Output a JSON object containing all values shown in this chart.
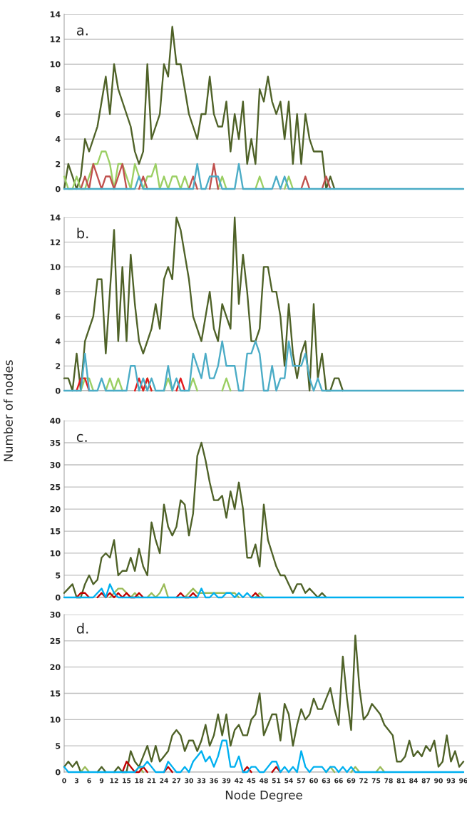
{
  "chart_data": [
    {
      "type": "line",
      "ylim": [
        0,
        14
      ],
      "yticks": [
        0,
        2,
        4,
        6,
        8,
        10,
        12,
        14
      ],
      "grid": "y",
      "tick_labels": "y",
      "annotations": [
        "a."
      ],
      "categories": [
        "0",
        null,
        null,
        "3",
        null,
        null,
        "6",
        null,
        null,
        "9",
        null,
        null,
        "12",
        null,
        null,
        "15",
        null,
        null,
        "18",
        null,
        null,
        "21",
        null,
        null,
        "24",
        null,
        null,
        "27",
        null,
        null,
        "30",
        null,
        null,
        "33",
        null,
        null,
        "36",
        null,
        null,
        "39",
        null,
        null,
        "42",
        null,
        null,
        "45",
        null,
        null,
        "48",
        null,
        null,
        "51",
        null,
        null,
        "54",
        null,
        null,
        "57",
        null,
        null,
        "60",
        null,
        null,
        "63",
        null,
        null,
        "66",
        null,
        null,
        "69",
        null,
        null,
        "72",
        null,
        null,
        "75",
        null,
        null,
        "78",
        null,
        null,
        "81",
        null,
        null,
        "84",
        null,
        null,
        "87",
        null,
        null,
        "90",
        null,
        null,
        "93",
        null,
        null,
        "96"
      ],
      "series": [
        {
          "color": "#4f6228",
          "values": [
            0,
            2,
            1,
            0,
            1,
            4,
            3,
            4,
            5,
            7,
            9,
            6,
            10,
            8,
            7,
            6,
            5,
            3,
            2,
            3,
            10,
            4,
            5,
            6,
            10,
            9,
            13,
            10,
            10,
            8,
            6,
            5,
            4,
            6,
            6,
            9,
            6,
            5,
            5,
            7,
            3,
            6,
            4,
            7,
            2,
            4,
            2,
            8,
            7,
            9,
            7,
            6,
            7,
            4,
            7,
            2,
            6,
            2,
            6,
            4,
            3,
            3,
            3,
            0,
            1,
            0,
            null,
            null,
            null,
            null,
            null,
            null,
            null,
            null,
            null,
            null,
            null,
            null,
            null,
            null,
            null,
            null,
            null,
            null,
            null,
            null,
            null,
            null,
            null,
            null,
            null,
            null,
            null,
            null,
            null,
            null,
            null
          ]
        },
        {
          "color": "#9bcf63",
          "values": [
            1,
            0,
            0,
            1,
            0,
            0,
            1,
            2,
            2,
            3,
            3,
            2,
            0,
            2,
            2,
            1,
            0,
            2,
            1,
            0,
            1,
            1,
            2,
            0,
            1,
            0,
            1,
            1,
            0,
            1,
            0,
            null,
            null,
            null,
            null,
            null,
            null,
            0,
            1,
            0,
            null,
            null,
            null,
            null,
            null,
            null,
            0,
            1,
            0,
            null,
            null,
            null,
            null,
            0,
            1,
            0,
            null,
            null,
            null,
            null,
            null,
            null,
            null,
            null,
            null,
            null,
            null,
            null,
            null,
            null,
            null,
            null,
            null,
            null,
            null,
            null,
            null,
            null,
            null,
            null,
            null,
            null,
            null,
            null,
            null,
            null,
            null,
            null,
            null,
            null,
            null,
            null,
            null,
            null,
            null,
            null,
            null
          ]
        },
        {
          "color": "#c0504d",
          "values": [
            null,
            null,
            null,
            null,
            0,
            1,
            0,
            2,
            1,
            0,
            1,
            1,
            0,
            1,
            2,
            0,
            null,
            null,
            0,
            1,
            0,
            null,
            null,
            null,
            null,
            null,
            null,
            null,
            null,
            null,
            0,
            1,
            0,
            null,
            null,
            0,
            2,
            0,
            null,
            null,
            null,
            null,
            null,
            null,
            null,
            null,
            null,
            null,
            null,
            null,
            null,
            null,
            null,
            null,
            null,
            null,
            null,
            0,
            1,
            0,
            null,
            null,
            0,
            1,
            0,
            null,
            null,
            null,
            null,
            null,
            null,
            null,
            null,
            null,
            null,
            null,
            null,
            null,
            null,
            null,
            null,
            null,
            null,
            null,
            null,
            null,
            null,
            null,
            null,
            null,
            null,
            null,
            null,
            null,
            null,
            null,
            null
          ]
        },
        {
          "color": "#4bacc6",
          "values": [
            0,
            0,
            0,
            0,
            0,
            0,
            0,
            0,
            0,
            0,
            0,
            0,
            0,
            0,
            0,
            0,
            0,
            0,
            1,
            0,
            0,
            0,
            0,
            0,
            0,
            0,
            0,
            0,
            0,
            0,
            0,
            0,
            2,
            0,
            0,
            1,
            1,
            1,
            0,
            0,
            0,
            0,
            2,
            0,
            0,
            0,
            0,
            0,
            0,
            0,
            0,
            1,
            0,
            1,
            0,
            0,
            0,
            0,
            0,
            0,
            0,
            0,
            0,
            0,
            0,
            0,
            0,
            0,
            0,
            0,
            0,
            0,
            0,
            0,
            0,
            0,
            0,
            0,
            0,
            0,
            0,
            0,
            0,
            0,
            0,
            0,
            0,
            0,
            0,
            0,
            0,
            0,
            0,
            0,
            0,
            0,
            0
          ]
        }
      ]
    },
    {
      "type": "line",
      "ylim": [
        0,
        14
      ],
      "yticks": [
        0,
        2,
        4,
        6,
        8,
        10,
        12,
        14
      ],
      "grid": "y",
      "tick_labels": "y",
      "annotations": [
        "b."
      ],
      "ylabel": "Number of nodes",
      "categories": [
        "0",
        null,
        null,
        "3",
        null,
        null,
        "6",
        null,
        null,
        "9",
        null,
        null,
        "12",
        null,
        null,
        "15",
        null,
        null,
        "18",
        null,
        null,
        "21",
        null,
        null,
        "24",
        null,
        null,
        "27",
        null,
        null,
        "30",
        null,
        null,
        "33",
        null,
        null,
        "36",
        null,
        null,
        "39",
        null,
        null,
        "42",
        null,
        null,
        "45",
        null,
        null,
        "48",
        null,
        null,
        "51",
        null,
        null,
        "54",
        null,
        null,
        "57",
        null,
        null,
        "60",
        null,
        null,
        "63",
        null,
        null,
        "66",
        null,
        null,
        "69",
        null,
        null,
        "72",
        null,
        null,
        "75",
        null,
        null,
        "78",
        null,
        null,
        "81",
        null,
        null,
        "84",
        null,
        null,
        "87",
        null,
        null,
        "90",
        null,
        null,
        "93",
        null,
        null,
        "96"
      ],
      "series": [
        {
          "color": "#4f6228",
          "values": [
            1,
            1,
            0,
            3,
            0,
            4,
            5,
            6,
            9,
            9,
            3,
            8,
            13,
            4,
            10,
            4,
            11,
            7,
            4,
            3,
            4,
            5,
            7,
            5,
            9,
            10,
            9,
            14,
            13,
            11,
            9,
            6,
            5,
            4,
            6,
            8,
            5,
            4,
            7,
            6,
            5,
            14,
            7,
            11,
            8,
            4,
            4,
            5,
            10,
            10,
            8,
            8,
            6,
            2,
            7,
            3,
            1,
            3,
            4,
            0,
            7,
            1,
            3,
            0,
            0,
            1,
            1,
            0,
            null,
            null,
            null,
            null,
            null,
            null,
            null,
            null,
            null,
            null,
            null,
            null,
            null,
            null,
            null,
            null,
            null,
            null,
            null,
            null,
            null,
            null,
            null,
            null,
            null,
            null,
            null,
            null,
            null
          ]
        },
        {
          "color": "#9bcf63",
          "values": [
            null,
            null,
            null,
            null,
            0,
            1,
            1,
            0,
            null,
            null,
            0,
            1,
            0,
            1,
            0,
            null,
            null,
            null,
            null,
            0,
            1,
            0,
            null,
            null,
            0,
            1,
            0,
            null,
            null,
            null,
            0,
            1,
            0,
            null,
            null,
            null,
            null,
            null,
            0,
            1,
            0,
            null,
            null,
            null,
            null,
            null,
            null,
            null,
            null,
            null,
            null,
            null,
            null,
            null,
            null,
            null,
            null,
            null,
            null,
            null,
            null,
            null,
            null,
            null,
            null,
            null,
            null,
            null,
            null,
            null,
            null,
            null,
            null,
            null,
            null,
            null,
            null,
            null,
            null,
            null,
            null,
            null,
            null,
            null,
            null,
            null,
            null,
            null,
            null,
            null,
            null,
            null,
            null,
            null,
            null,
            null,
            null
          ]
        },
        {
          "color": "#e31a1c",
          "values": [
            null,
            null,
            null,
            0,
            1,
            1,
            0,
            null,
            null,
            null,
            null,
            null,
            null,
            null,
            null,
            null,
            null,
            0,
            1,
            0,
            1,
            0,
            null,
            null,
            null,
            null,
            null,
            0,
            1,
            0,
            null,
            null,
            null,
            null,
            null,
            null,
            null,
            null,
            null,
            null,
            null,
            null,
            null,
            null,
            null,
            null,
            null,
            null,
            null,
            null,
            null,
            null,
            null,
            null,
            null,
            null,
            null,
            null,
            null,
            null,
            null,
            null,
            null,
            null,
            null,
            null,
            null,
            null,
            null,
            null,
            null,
            null,
            null,
            null,
            null,
            null,
            null,
            null,
            null,
            null,
            null,
            null,
            null,
            null,
            null,
            null,
            null,
            null,
            null,
            null,
            null,
            null,
            null,
            null,
            null,
            null,
            null
          ]
        },
        {
          "color": "#4bacc6",
          "values": [
            0,
            0,
            0,
            0,
            0,
            3,
            0,
            0,
            0,
            1,
            0,
            0,
            0,
            0,
            0,
            0,
            2,
            2,
            0,
            1,
            0,
            1,
            0,
            0,
            0,
            2,
            0,
            1,
            0,
            0,
            0,
            3,
            2,
            1,
            3,
            1,
            1,
            2,
            4,
            2,
            2,
            2,
            0,
            0,
            3,
            3,
            4,
            3,
            0,
            0,
            2,
            0,
            1,
            1,
            4,
            2,
            2,
            2,
            3,
            1,
            0,
            1,
            0,
            0,
            0,
            0,
            0,
            0,
            0,
            0,
            0,
            0,
            0,
            0,
            0,
            0,
            0,
            0,
            0,
            0,
            0,
            0,
            0,
            0,
            0,
            0,
            0,
            0,
            0,
            0,
            0,
            0,
            0,
            0,
            0,
            0,
            0
          ]
        }
      ]
    },
    {
      "type": "line",
      "ylim": [
        0,
        40
      ],
      "yticks": [
        0,
        5,
        10,
        15,
        20,
        25,
        30,
        35,
        40
      ],
      "grid": "y",
      "tick_labels": "y",
      "annotations": [
        "c."
      ],
      "categories": [
        "0",
        null,
        null,
        "3",
        null,
        null,
        "6",
        null,
        null,
        "9",
        null,
        null,
        "12",
        null,
        null,
        "15",
        null,
        null,
        "18",
        null,
        null,
        "21",
        null,
        null,
        "24",
        null,
        null,
        "27",
        null,
        null,
        "30",
        null,
        null,
        "33",
        null,
        null,
        "36",
        null,
        null,
        "39",
        null,
        null,
        "42",
        null,
        null,
        "45",
        null,
        null,
        "48",
        null,
        null,
        "51",
        null,
        null,
        "54",
        null,
        null,
        "57",
        null,
        null,
        "60",
        null,
        null,
        "63",
        null,
        null,
        "66",
        null,
        null,
        "69",
        null,
        null,
        "72",
        null,
        null,
        "75",
        null,
        null,
        "78",
        null,
        null,
        "81",
        null,
        null,
        "84",
        null,
        null,
        "87",
        null,
        null,
        "90",
        null,
        null,
        "93",
        null,
        null,
        "96"
      ],
      "series": [
        {
          "color": "#4f6228",
          "values": [
            1,
            2,
            3,
            0,
            0,
            3,
            5,
            3,
            4,
            9,
            10,
            9,
            13,
            5,
            6,
            6,
            9,
            6,
            11,
            7,
            5,
            17,
            13,
            10,
            21,
            16,
            14,
            16,
            22,
            21,
            14,
            19,
            32,
            35,
            31,
            26,
            22,
            22,
            23,
            18,
            24,
            20,
            26,
            20,
            9,
            9,
            12,
            7,
            21,
            13,
            10,
            7,
            5,
            5,
            3,
            1,
            3,
            3,
            1,
            2,
            1,
            0,
            1,
            0,
            null,
            null,
            null,
            null,
            null,
            null,
            null,
            null,
            null,
            null,
            null,
            null,
            null,
            null,
            null,
            null,
            null,
            null,
            null,
            null,
            null,
            null,
            null,
            null,
            null,
            null,
            null,
            null,
            null,
            null,
            null,
            null,
            null
          ]
        },
        {
          "color": "#9bbb59",
          "values": [
            null,
            null,
            null,
            null,
            null,
            null,
            null,
            null,
            null,
            null,
            null,
            0,
            1,
            2,
            2,
            1,
            0,
            1,
            0,
            null,
            0,
            1,
            0,
            1,
            3,
            0,
            null,
            null,
            null,
            0,
            1,
            2,
            1,
            1,
            1,
            1,
            1,
            1,
            1,
            1,
            1,
            1,
            0,
            null,
            null,
            null,
            0,
            1,
            0,
            null,
            null,
            null,
            null,
            null,
            null,
            null,
            null,
            null,
            null,
            null,
            null,
            null,
            null,
            null,
            null,
            null,
            null,
            null,
            null,
            null,
            null,
            null,
            null,
            null,
            null,
            null,
            null,
            null,
            null,
            null,
            null,
            null,
            null,
            null,
            null,
            null,
            null,
            null,
            null,
            null,
            null,
            null,
            null,
            null,
            null,
            null,
            null
          ]
        },
        {
          "color": "#c00000",
          "values": [
            null,
            null,
            null,
            0,
            1,
            1,
            0,
            null,
            0,
            1,
            0,
            1,
            0,
            1,
            0,
            1,
            0,
            0,
            1,
            0,
            null,
            null,
            null,
            null,
            null,
            null,
            null,
            0,
            1,
            0,
            0,
            1,
            0,
            null,
            null,
            null,
            null,
            null,
            null,
            null,
            null,
            null,
            null,
            null,
            null,
            0,
            1,
            0,
            null,
            null,
            null,
            null,
            null,
            null,
            null,
            null,
            null,
            null,
            null,
            null,
            null,
            null,
            null,
            null,
            null,
            null,
            null,
            null,
            null,
            null,
            null,
            null,
            null,
            null,
            null,
            null,
            null,
            null,
            null,
            null,
            null,
            null,
            null,
            null,
            null,
            null,
            null,
            null,
            null,
            null,
            null,
            null,
            null,
            null,
            null,
            null,
            null
          ]
        },
        {
          "color": "#00b0f0",
          "values": [
            0,
            0,
            0,
            0,
            0,
            0,
            0,
            0,
            1,
            2,
            0,
            3,
            1,
            0,
            0,
            0,
            0,
            0,
            0,
            0,
            0,
            0,
            0,
            0,
            0,
            0,
            0,
            0,
            0,
            0,
            0,
            0,
            0,
            2,
            0,
            0,
            1,
            0,
            0,
            1,
            1,
            0,
            1,
            0,
            1,
            0,
            0,
            0,
            0,
            0,
            0,
            0,
            0,
            0,
            0,
            0,
            0,
            0,
            0,
            0,
            0,
            0,
            0,
            0,
            0,
            0,
            0,
            0,
            0,
            0,
            0,
            0,
            0,
            0,
            0,
            0,
            0,
            0,
            0,
            0,
            0,
            0,
            0,
            0,
            0,
            0,
            0,
            0,
            0,
            0,
            0,
            0,
            0,
            0,
            0,
            0,
            0
          ]
        }
      ]
    },
    {
      "type": "line",
      "ylim": [
        0,
        30
      ],
      "yticks": [
        0,
        5,
        10,
        15,
        20,
        25,
        30
      ],
      "grid": "y",
      "annotations": [
        "d."
      ],
      "xlabel": "Node Degree",
      "categories": [
        "0",
        null,
        null,
        "3",
        null,
        null,
        "6",
        null,
        null,
        "9",
        null,
        null,
        "12",
        null,
        null,
        "15",
        null,
        null,
        "18",
        null,
        null,
        "21",
        null,
        null,
        "24",
        null,
        null,
        "27",
        null,
        null,
        "30",
        null,
        null,
        "33",
        null,
        null,
        "36",
        null,
        null,
        "39",
        null,
        null,
        "42",
        null,
        null,
        "45",
        null,
        null,
        "48",
        null,
        null,
        "51",
        null,
        null,
        "54",
        null,
        null,
        "57",
        null,
        null,
        "60",
        null,
        null,
        "63",
        null,
        null,
        "66",
        null,
        null,
        "69",
        null,
        null,
        "72",
        null,
        null,
        "75",
        null,
        null,
        "78",
        null,
        null,
        "81",
        null,
        null,
        "84",
        null,
        null,
        "87",
        null,
        null,
        "90",
        null,
        null,
        "93",
        null,
        null,
        "96"
      ],
      "series": [
        {
          "color": "#4f6228",
          "values": [
            1,
            2,
            1,
            2,
            0,
            null,
            null,
            null,
            0,
            1,
            0,
            null,
            0,
            1,
            0,
            0,
            4,
            2,
            1,
            3,
            5,
            2,
            5,
            2,
            3,
            4,
            7,
            8,
            7,
            4,
            6,
            6,
            4,
            6,
            9,
            5,
            7,
            11,
            7,
            11,
            5,
            8,
            9,
            7,
            7,
            10,
            11,
            15,
            7,
            9,
            11,
            11,
            6,
            13,
            11,
            5,
            9,
            12,
            10,
            11,
            14,
            12,
            12,
            14,
            16,
            12,
            9,
            22,
            14,
            8,
            26,
            16,
            10,
            11,
            13,
            12,
            11,
            9,
            8,
            7,
            2,
            2,
            3,
            6,
            3,
            4,
            3,
            5,
            4,
            6,
            1,
            2,
            7,
            2,
            4,
            1,
            2
          ]
        },
        {
          "color": "#9bbb59",
          "values": [
            null,
            null,
            null,
            null,
            0,
            1,
            0,
            null,
            null,
            null,
            null,
            null,
            null,
            null,
            null,
            null,
            null,
            0,
            1,
            0,
            null,
            null,
            null,
            null,
            null,
            null,
            null,
            null,
            null,
            null,
            null,
            null,
            null,
            null,
            null,
            null,
            null,
            null,
            null,
            null,
            null,
            null,
            null,
            null,
            null,
            null,
            null,
            null,
            null,
            null,
            null,
            null,
            null,
            null,
            null,
            null,
            null,
            null,
            null,
            null,
            null,
            null,
            null,
            0,
            1,
            0,
            null,
            null,
            null,
            0,
            1,
            0,
            null,
            null,
            null,
            0,
            1,
            0,
            null,
            null,
            null,
            null,
            null,
            null,
            null,
            null,
            null,
            null,
            null,
            null,
            null,
            null,
            null,
            null,
            null,
            null,
            null
          ]
        },
        {
          "color": "#c00000",
          "values": [
            null,
            null,
            null,
            null,
            null,
            null,
            null,
            null,
            null,
            null,
            null,
            null,
            null,
            null,
            0,
            2,
            1,
            0,
            0,
            1,
            0,
            null,
            null,
            null,
            0,
            1,
            0,
            null,
            null,
            null,
            null,
            null,
            null,
            null,
            null,
            null,
            null,
            null,
            null,
            null,
            null,
            null,
            null,
            0,
            1,
            0,
            null,
            null,
            null,
            null,
            0,
            1,
            0,
            null,
            null,
            null,
            null,
            null,
            null,
            null,
            null,
            null,
            null,
            null,
            null,
            null,
            null,
            null,
            null,
            null,
            null,
            null,
            null,
            null,
            null,
            null,
            null,
            null,
            null,
            null,
            null,
            null,
            null,
            null,
            null,
            null,
            null,
            null,
            null,
            null,
            null,
            null,
            null,
            null,
            null,
            null,
            null
          ]
        },
        {
          "color": "#00b0f0",
          "values": [
            1,
            0,
            0,
            0,
            0,
            0,
            0,
            0,
            0,
            0,
            0,
            0,
            0,
            0,
            0,
            0,
            0,
            0,
            1,
            1,
            2,
            1,
            0,
            0,
            0,
            2,
            1,
            0,
            0,
            1,
            0,
            2,
            3,
            4,
            2,
            3,
            1,
            3,
            6,
            6,
            1,
            1,
            3,
            0,
            0,
            1,
            1,
            0,
            0,
            1,
            2,
            2,
            0,
            1,
            0,
            1,
            0,
            4,
            1,
            0,
            1,
            1,
            1,
            0,
            1,
            1,
            0,
            1,
            0,
            1,
            0,
            0,
            0,
            0,
            0,
            0,
            0,
            0,
            0,
            0,
            0,
            0,
            0,
            0,
            0,
            0,
            0,
            0,
            0,
            0,
            0,
            0,
            0,
            0,
            0,
            0,
            0
          ]
        }
      ]
    }
  ]
}
